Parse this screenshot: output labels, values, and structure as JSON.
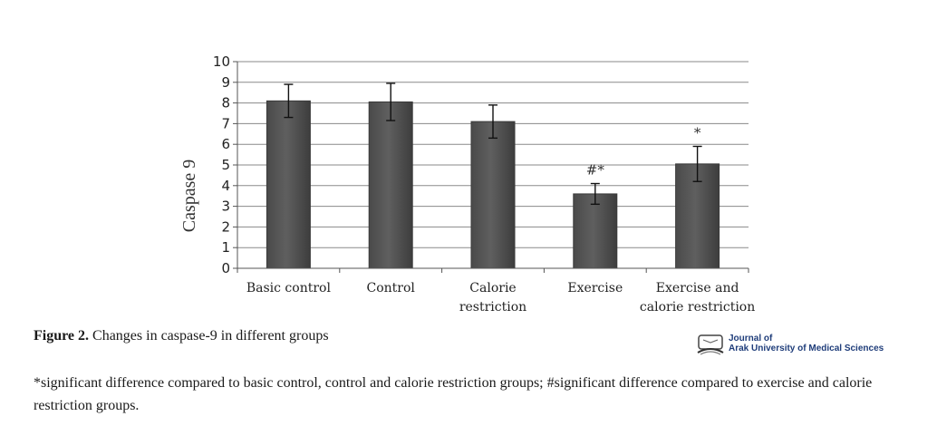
{
  "chart_data": {
    "type": "bar",
    "title": "",
    "xlabel": "",
    "ylabel": "Caspase 9",
    "ylim": [
      0,
      10
    ],
    "yticks": [
      "0",
      "1",
      "2",
      "3",
      "4",
      "5",
      "6",
      "7",
      "8",
      "9",
      "10"
    ],
    "grid": true,
    "legend": "none",
    "bar_color": "#5f5f5f",
    "categories": [
      [
        "Basic control"
      ],
      [
        "Control"
      ],
      [
        "Calorie",
        "restriction"
      ],
      [
        "Exercise"
      ],
      [
        "Exercise and",
        "calorie restriction"
      ]
    ],
    "values": [
      8.1,
      8.05,
      7.1,
      3.6,
      5.05
    ],
    "error_bars": [
      0.8,
      0.9,
      0.8,
      0.5,
      0.85
    ],
    "annotations": [
      "",
      "",
      "",
      "#*",
      "*"
    ]
  },
  "caption": {
    "label": "Figure 2.",
    "text": " Changes in caspase-9 in different groups"
  },
  "footnote": "*significant difference compared to basic control, control and calorie restriction groups; #significant difference compared to exercise and calorie restriction groups.",
  "journal_logo": {
    "line1": "Journal of",
    "line2": "Arak University of Medical Sciences",
    "emblem_icon": "book-emblem-icon"
  }
}
